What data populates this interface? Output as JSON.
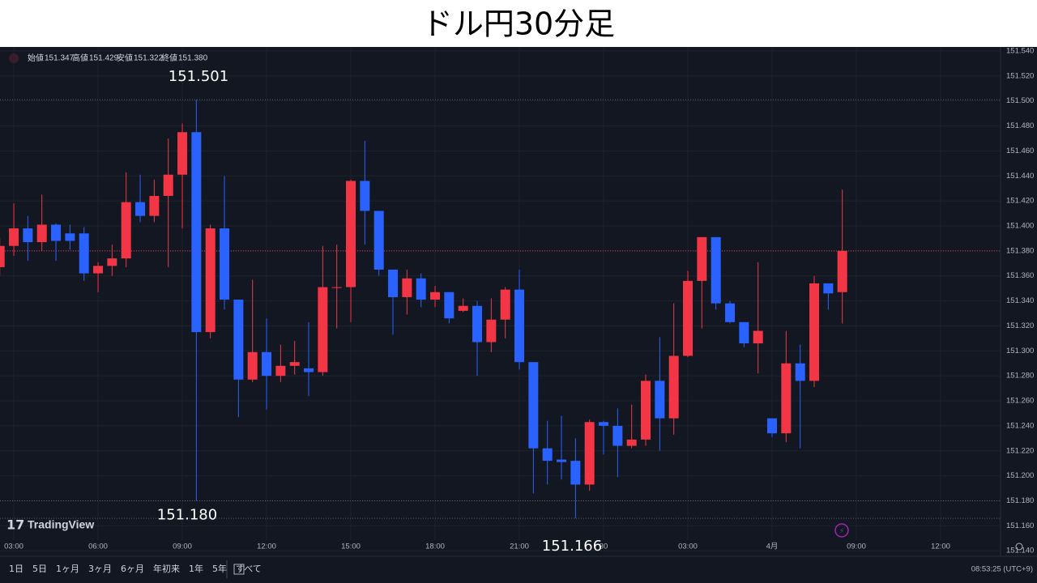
{
  "title": "ドル円30分足",
  "ohlc_legend": [
    {
      "label": "始値",
      "value": "151.347"
    },
    {
      "label": "高値",
      "value": "151.429"
    },
    {
      "label": "安値",
      "value": "151.322"
    },
    {
      "label": "終値",
      "value": "151.380"
    }
  ],
  "brand": "TradingView",
  "toolbar": {
    "ranges": [
      "1日",
      "5日",
      "1ヶ月",
      "3ヶ月",
      "6ヶ月",
      "年初来",
      "1年",
      "5年",
      "すべて"
    ],
    "clock": "08:53:25 (UTC+9)"
  },
  "chart_data": {
    "type": "candlestick",
    "up_color": "#f23645",
    "down_color": "#2962ff",
    "categories": [
      null,
      null,
      null,
      null,
      null,
      null,
      null,
      null,
      null,
      null,
      null,
      null,
      null,
      null,
      null,
      null,
      null,
      null,
      null,
      null,
      null,
      null,
      null,
      null,
      null,
      null,
      null,
      null,
      null,
      null,
      null,
      null,
      null,
      null,
      null,
      null,
      null,
      null,
      null,
      null,
      null,
      null,
      null,
      null,
      null,
      null,
      null,
      null,
      null,
      null,
      null,
      null,
      null,
      null,
      null,
      null,
      null,
      null,
      null,
      null,
      null
    ],
    "open": [
      151.367,
      151.384,
      151.398,
      151.387,
      151.401,
      151.394,
      151.394,
      151.362,
      151.368,
      151.374,
      151.419,
      151.408,
      151.424,
      151.441,
      151.475,
      151.315,
      151.398,
      151.341,
      151.277,
      151.299,
      151.28,
      151.288,
      151.286,
      151.283,
      151.351,
      151.351,
      151.436,
      151.412,
      151.365,
      151.343,
      151.358,
      151.341,
      151.347,
      151.332,
      151.336,
      151.307,
      151.325,
      151.349,
      151.291,
      151.222,
      151.213,
      151.212,
      151.193,
      151.243,
      151.24,
      151.224,
      151.229,
      151.276,
      151.246,
      151.296,
      151.356,
      151.391,
      151.338,
      151.323,
      151.306,
      151.246,
      151.234,
      151.29,
      151.276,
      151.354,
      151.347
    ],
    "high": [
      151.39,
      151.418,
      151.408,
      151.425,
      151.402,
      151.401,
      151.399,
      151.371,
      151.385,
      151.443,
      151.441,
      151.437,
      151.47,
      151.482,
      151.501,
      151.401,
      151.44,
      151.341,
      151.357,
      151.326,
      151.305,
      151.308,
      151.323,
      151.384,
      151.385,
      151.437,
      151.468,
      151.412,
      151.365,
      151.365,
      151.362,
      151.352,
      151.347,
      151.342,
      151.34,
      151.342,
      151.351,
      151.365,
      151.291,
      151.244,
      151.248,
      151.23,
      151.245,
      151.244,
      151.254,
      151.257,
      151.281,
      151.311,
      151.338,
      151.364,
      151.391,
      151.391,
      151.34,
      151.323,
      151.371,
      151.246,
      151.316,
      151.305,
      151.36,
      151.354,
      151.429
    ],
    "low": [
      151.36,
      151.376,
      151.372,
      151.38,
      151.372,
      151.381,
      151.356,
      151.347,
      151.36,
      151.367,
      151.403,
      151.403,
      151.367,
      151.398,
      151.18,
      151.31,
      151.333,
      151.247,
      151.275,
      151.253,
      151.275,
      151.281,
      151.264,
      151.28,
      151.318,
      151.323,
      151.385,
      151.36,
      151.313,
      151.329,
      151.335,
      151.335,
      151.322,
      151.331,
      151.28,
      151.299,
      151.31,
      151.285,
      151.186,
      151.193,
      151.197,
      151.166,
      151.188,
      151.217,
      151.199,
      151.222,
      151.224,
      151.22,
      151.233,
      151.295,
      151.318,
      151.333,
      151.322,
      151.303,
      151.282,
      151.231,
      151.227,
      151.222,
      151.271,
      151.333,
      151.322
    ],
    "close": [
      151.384,
      151.398,
      151.387,
      151.401,
      151.388,
      151.388,
      151.362,
      151.368,
      151.374,
      151.419,
      151.408,
      151.424,
      151.441,
      151.475,
      151.315,
      151.398,
      151.341,
      151.277,
      151.299,
      151.28,
      151.288,
      151.291,
      151.283,
      151.351,
      151.351,
      151.436,
      151.412,
      151.365,
      151.343,
      151.358,
      151.341,
      151.347,
      151.326,
      151.336,
      151.307,
      151.325,
      151.349,
      151.291,
      151.222,
      151.212,
      151.211,
      151.193,
      151.243,
      151.24,
      151.224,
      151.229,
      151.276,
      151.246,
      151.296,
      151.356,
      151.391,
      151.338,
      151.323,
      151.306,
      151.316,
      151.234,
      151.29,
      151.276,
      151.354,
      151.346,
      151.38
    ],
    "ylim": [
      151.1356,
      151.5432
    ],
    "yticks": [
      {
        "value": 151.14,
        "label": "151.140"
      },
      {
        "value": 151.16,
        "label": "151.160"
      },
      {
        "value": 151.18,
        "label": "151.180"
      },
      {
        "value": 151.2,
        "label": "151.200"
      },
      {
        "value": 151.22,
        "label": "151.220"
      },
      {
        "value": 151.24,
        "label": "151.240"
      },
      {
        "value": 151.26,
        "label": "151.260"
      },
      {
        "value": 151.28,
        "label": "151.280"
      },
      {
        "value": 151.3,
        "label": "151.300"
      },
      {
        "value": 151.32,
        "label": "151.320"
      },
      {
        "value": 151.34,
        "label": "151.340"
      },
      {
        "value": 151.36,
        "label": "151.360"
      },
      {
        "value": 151.38,
        "label": "151.380"
      },
      {
        "value": 151.4,
        "label": "151.400"
      },
      {
        "value": 151.42,
        "label": "151.420"
      },
      {
        "value": 151.44,
        "label": "151.440"
      },
      {
        "value": 151.46,
        "label": "151.460"
      },
      {
        "value": 151.48,
        "label": "151.480"
      },
      {
        "value": 151.5,
        "label": "151.500"
      },
      {
        "value": 151.52,
        "label": "151.520"
      },
      {
        "value": 151.54,
        "label": "151.540"
      }
    ],
    "xticks": [
      {
        "value": 1,
        "label": "03:00"
      },
      {
        "value": 7,
        "label": "06:00"
      },
      {
        "value": 13,
        "label": "09:00"
      },
      {
        "value": 19,
        "label": "12:00"
      },
      {
        "value": 25,
        "label": "15:00"
      },
      {
        "value": 31,
        "label": "18:00"
      },
      {
        "value": 37,
        "label": "21:00"
      },
      {
        "value": 43,
        "label": "30"
      },
      {
        "value": 49,
        "label": "03:00"
      },
      {
        "value": 55,
        "label": "4月"
      },
      {
        "value": 61,
        "label": "09:00"
      },
      {
        "value": 67,
        "label": "12:00"
      }
    ],
    "grid": true,
    "annotations": [
      {
        "value": 151.501,
        "label": "151.501"
      },
      {
        "value": 151.18,
        "label": "151.180"
      },
      {
        "value": 151.166,
        "label": "151.166"
      }
    ]
  }
}
